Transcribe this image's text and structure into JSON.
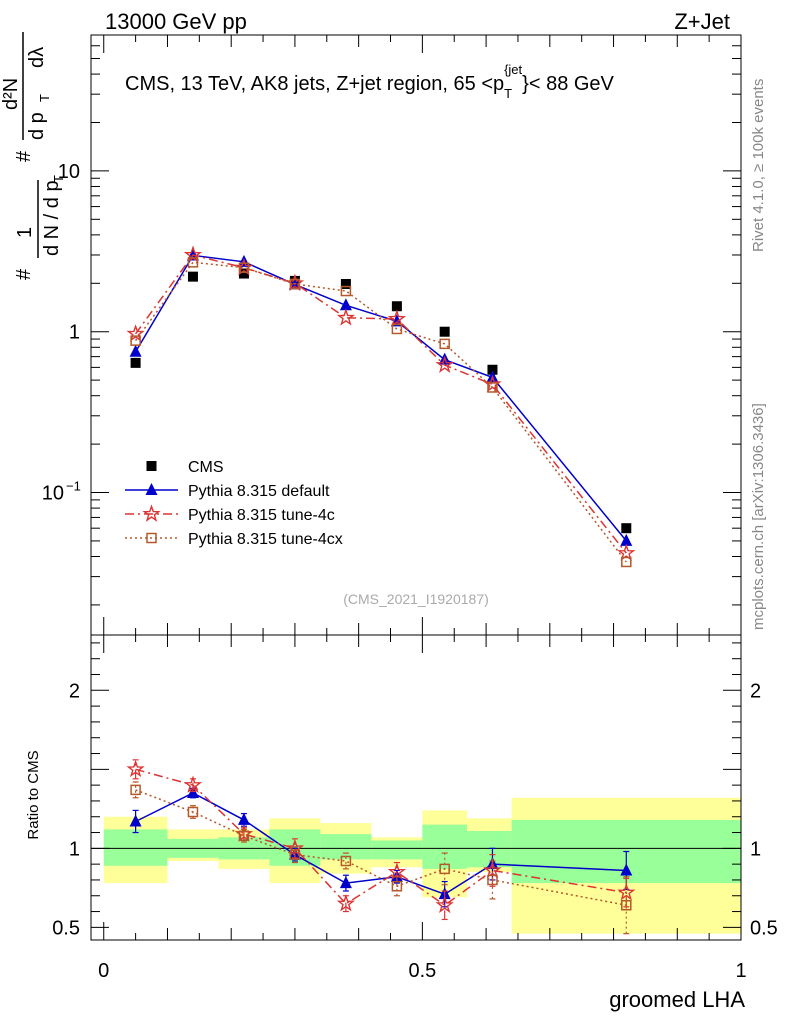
{
  "header": {
    "left_label": "13000 GeV pp",
    "right_label": "Z+Jet"
  },
  "side_text": {
    "rivet": "Rivet 4.1.0, ≥ 100k events",
    "mcplots": "mcplots.cern.ch [arXiv:1306.3436]"
  },
  "chart_data": [
    {
      "type": "scatter",
      "panel": "main",
      "title": "CMS, 13 TeV, AK8 jets, Z+jet region, 65 <p_T^{jet}}< 88 GeV",
      "title_parts": {
        "pre": "CMS, 13 TeV, AK8 jets, Z+jet region, 65 <p",
        "sub": "T",
        "sup": "{jet",
        "post": "}< 88 GeV"
      },
      "ylabel": "1/dN/dp_T # d^2N/dp_T dlambda",
      "ylabel_parts": {
        "hash": "#",
        "one": "1",
        "dN": "d N / d p",
        "T": "T",
        "d2N": "d²N",
        "dpt": "d p",
        "dlam": "dλ"
      },
      "yscale": "log",
      "ylim": [
        0.013,
        70
      ],
      "xlim": [
        -0.02,
        1.0
      ],
      "y_ticks": [
        {
          "value": 0.1,
          "label": "10",
          "exp": "−1"
        },
        {
          "value": 1,
          "label": "1",
          "exp": ""
        },
        {
          "value": 10,
          "label": "10",
          "exp": ""
        }
      ],
      "watermark": "(CMS_2021_I1920187)",
      "legend_position": "middle-left",
      "x": [
        0.05,
        0.14,
        0.22,
        0.3,
        0.38,
        0.46,
        0.535,
        0.61,
        0.82
      ],
      "series": [
        {
          "name": "CMS",
          "color": "#000000",
          "marker": "square",
          "line": "none",
          "values": [
            0.64,
            2.2,
            2.3,
            2.07,
            1.98,
            1.44,
            1.0,
            0.58,
            0.06
          ]
        },
        {
          "name": "Pythia 8.315 default",
          "color": "#0000cc",
          "marker": "triangle",
          "line": "solid",
          "values": [
            0.75,
            2.98,
            2.72,
            1.97,
            1.46,
            1.16,
            0.67,
            0.52,
            0.05
          ]
        },
        {
          "name": "Pythia 8.315 tune-4c",
          "color": "#dd3333",
          "marker": "star",
          "line": "dashdot",
          "values": [
            0.97,
            3.0,
            2.5,
            2.0,
            1.22,
            1.2,
            0.62,
            0.47,
            0.042
          ]
        },
        {
          "name": "Pythia 8.315 tune-4cx",
          "color": "#b5582a",
          "marker": "open-square",
          "line": "dotted",
          "values": [
            0.88,
            2.7,
            2.5,
            1.98,
            1.79,
            1.04,
            0.84,
            0.45,
            0.037
          ]
        }
      ]
    },
    {
      "type": "scatter",
      "panel": "ratio",
      "ylabel": "Ratio to CMS",
      "xlabel": "groomed LHA",
      "ylim": [
        0.42,
        2.35
      ],
      "xlim": [
        -0.02,
        1.0
      ],
      "y_ticks": [
        {
          "value": 0.5,
          "label": "0.5"
        },
        {
          "value": 1,
          "label": "1"
        },
        {
          "value": 2,
          "label": "2"
        }
      ],
      "x_ticks": [
        {
          "value": 0,
          "label": "0"
        },
        {
          "value": 0.5,
          "label": "0.5"
        },
        {
          "value": 1,
          "label": "1"
        }
      ],
      "bands": [
        {
          "x0": 0.0,
          "x1": 0.1,
          "inner": [
            0.89,
            1.12
          ],
          "outer": [
            0.78,
            1.2
          ]
        },
        {
          "x0": 0.1,
          "x1": 0.18,
          "inner": [
            0.94,
            1.06
          ],
          "outer": [
            0.92,
            1.12
          ]
        },
        {
          "x0": 0.18,
          "x1": 0.26,
          "inner": [
            0.93,
            1.07
          ],
          "outer": [
            0.87,
            1.12
          ]
        },
        {
          "x0": 0.26,
          "x1": 0.34,
          "inner": [
            0.89,
            1.12
          ],
          "outer": [
            0.78,
            1.19
          ]
        },
        {
          "x0": 0.34,
          "x1": 0.42,
          "inner": [
            0.93,
            1.09
          ],
          "outer": [
            0.84,
            1.16
          ]
        },
        {
          "x0": 0.42,
          "x1": 0.5,
          "inner": [
            0.93,
            1.05
          ],
          "outer": [
            0.88,
            1.07
          ]
        },
        {
          "x0": 0.5,
          "x1": 0.57,
          "inner": [
            0.87,
            1.15
          ],
          "outer": [
            0.69,
            1.24
          ]
        },
        {
          "x0": 0.57,
          "x1": 0.64,
          "inner": [
            0.88,
            1.11
          ],
          "outer": [
            0.85,
            1.19
          ]
        },
        {
          "x0": 0.64,
          "x1": 1.0,
          "inner": [
            0.78,
            1.18
          ],
          "outer": [
            0.46,
            1.32
          ]
        }
      ],
      "x": [
        0.05,
        0.14,
        0.22,
        0.3,
        0.38,
        0.46,
        0.535,
        0.61,
        0.82
      ],
      "series": [
        {
          "name": "Pythia 8.315 default",
          "color": "#0000cc",
          "marker": "triangle",
          "line": "solid",
          "values": [
            1.17,
            1.35,
            1.18,
            0.96,
            0.78,
            0.82,
            0.71,
            0.9,
            0.86
          ],
          "errors": [
            0.07,
            0.03,
            0.04,
            0.04,
            0.05,
            0.04,
            0.08,
            0.1,
            0.12
          ]
        },
        {
          "name": "Pythia 8.315 tune-4c",
          "color": "#dd3333",
          "marker": "star",
          "line": "dashdot",
          "values": [
            1.5,
            1.4,
            1.09,
            1.0,
            0.65,
            0.85,
            0.64,
            0.86,
            0.72
          ],
          "errors": [
            0.06,
            0.04,
            0.04,
            0.06,
            0.05,
            0.06,
            0.09,
            0.1,
            0.09
          ]
        },
        {
          "name": "Pythia 8.315 tune-4cx",
          "color": "#b5582a",
          "marker": "open-square",
          "line": "dotted",
          "values": [
            1.37,
            1.23,
            1.08,
            0.96,
            0.92,
            0.76,
            0.87,
            0.8,
            0.64
          ],
          "errors": [
            0.05,
            0.04,
            0.04,
            0.05,
            0.05,
            0.06,
            0.1,
            0.12,
            0.18
          ]
        }
      ]
    }
  ]
}
